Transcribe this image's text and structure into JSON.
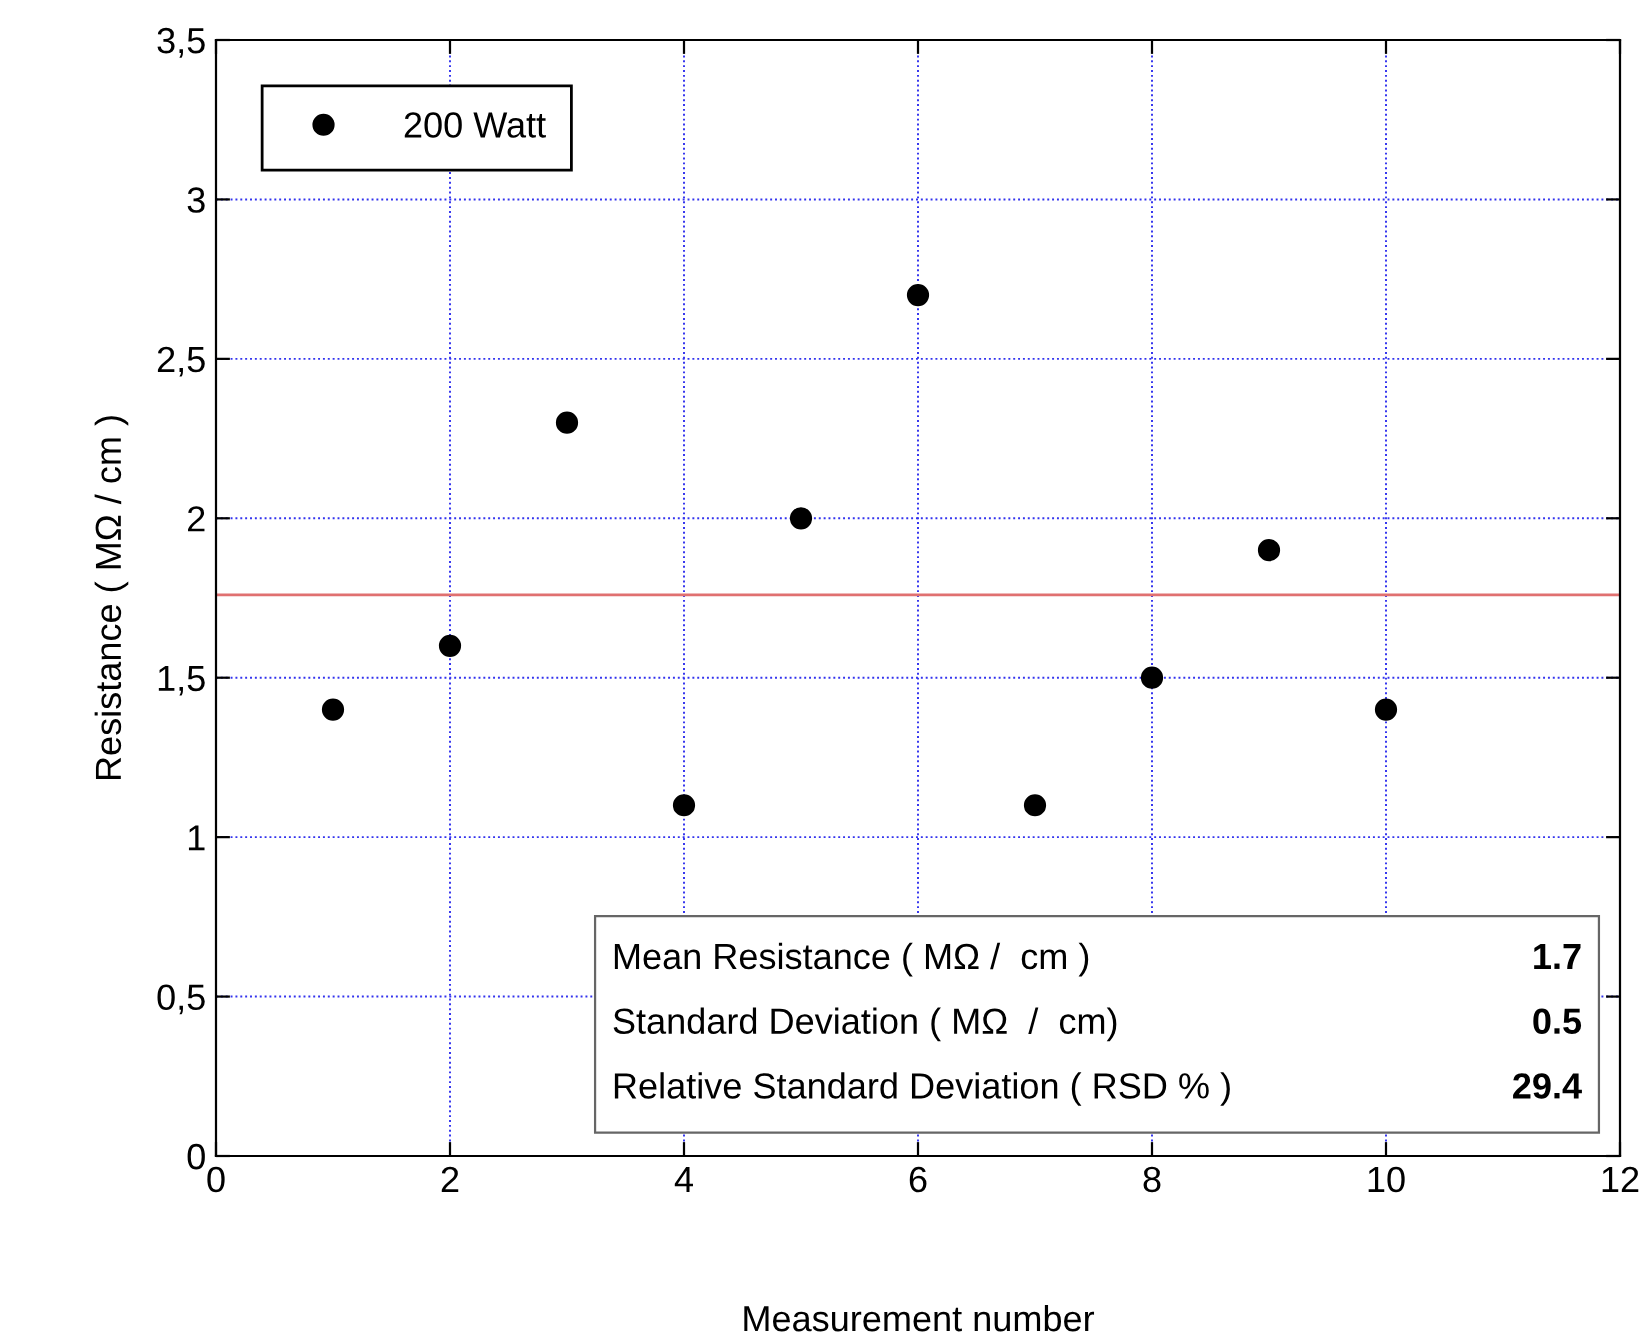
{
  "chart_data": {
    "type": "scatter",
    "xlabel": "Measurement number",
    "ylabel": "Resistance ( MΩ / cm )",
    "x": [
      1,
      2,
      3,
      4,
      5,
      6,
      7,
      8,
      9,
      10
    ],
    "series": [
      {
        "name": "200 Watt",
        "color": "#000000",
        "values": [
          1.4,
          1.6,
          2.3,
          1.1,
          2.0,
          2.7,
          1.1,
          1.5,
          1.9,
          1.4
        ]
      }
    ],
    "marker": "circle",
    "xlim": [
      0,
      12
    ],
    "xticks": [
      0,
      2,
      4,
      6,
      8,
      10,
      12
    ],
    "ylim": [
      0,
      3.5
    ],
    "yticks": [
      0,
      {
        "value": 0.5,
        "label": "0,5"
      },
      1,
      {
        "value": 1.5,
        "label": "1,5"
      },
      2,
      {
        "value": 2.5,
        "label": "2,5"
      },
      3,
      {
        "value": 3.5,
        "label": "3,5"
      }
    ],
    "ref_lines": [
      {
        "axis": "y",
        "value": 1.76,
        "color": "#e07070"
      }
    ],
    "grid": true,
    "legend": "top left",
    "annotations": [
      "Mean Resistance ( MΩ /  cm )",
      "1.7",
      "Standard Deviation ( MΩ  /  cm)",
      "0.5",
      "Relative Standard Deviation ( RSD % )",
      "29.4"
    ]
  }
}
